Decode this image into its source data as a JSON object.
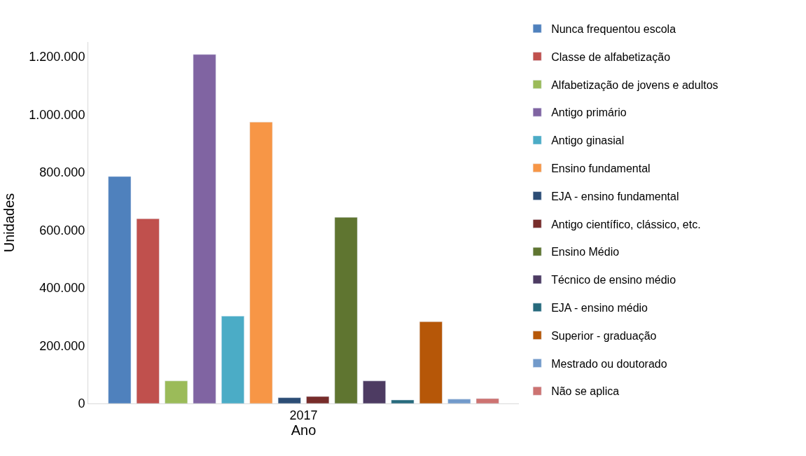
{
  "chart_data": {
    "type": "bar",
    "xlabel": "Ano",
    "ylabel": "Unidades",
    "categories": [
      "2017"
    ],
    "ylim": [
      0,
      1250000
    ],
    "yticks": [
      {
        "value": 0,
        "label": "0"
      },
      {
        "value": 200000,
        "label": "200.000"
      },
      {
        "value": 400000,
        "label": "400.000"
      },
      {
        "value": 600000,
        "label": "600.000"
      },
      {
        "value": 800000,
        "label": "800.000"
      },
      {
        "value": 1000000,
        "label": "1.000.000"
      },
      {
        "value": 1200000,
        "label": "1.200.000"
      }
    ],
    "grid": false,
    "legend": "right",
    "series": [
      {
        "name": "Nunca frequentou escola",
        "color": "#4f81bd",
        "values": [
          785000
        ]
      },
      {
        "name": "Classe de alfabetização",
        "color": "#c0504d",
        "values": [
          639000
        ]
      },
      {
        "name": "Alfabetização de jovens e adultos",
        "color": "#9bbb59",
        "values": [
          78000
        ]
      },
      {
        "name": "Antigo primário",
        "color": "#8064a2",
        "values": [
          1207000
        ]
      },
      {
        "name": "Antigo ginasial",
        "color": "#4bacc6",
        "values": [
          302000
        ]
      },
      {
        "name": "Ensino fundamental",
        "color": "#f79646",
        "values": [
          973000
        ]
      },
      {
        "name": "EJA - ensino fundamental",
        "color": "#2c4d75",
        "values": [
          20000
        ]
      },
      {
        "name": "Antigo científico, clássico, etc.",
        "color": "#772c2a",
        "values": [
          24000
        ]
      },
      {
        "name": "Ensino Médio",
        "color": "#5f7530",
        "values": [
          644000
        ]
      },
      {
        "name": "Técnico de ensino médio",
        "color": "#4d3b62",
        "values": [
          78000
        ]
      },
      {
        "name": "EJA - ensino médio",
        "color": "#276a7c",
        "values": [
          12000
        ]
      },
      {
        "name": "Superior - graduação",
        "color": "#b65708",
        "values": [
          283000
        ]
      },
      {
        "name": "Mestrado ou doutorado",
        "color": "#729aca",
        "values": [
          15000
        ]
      },
      {
        "name": "Não se aplica",
        "color": "#cd7371",
        "values": [
          17000
        ]
      }
    ]
  }
}
